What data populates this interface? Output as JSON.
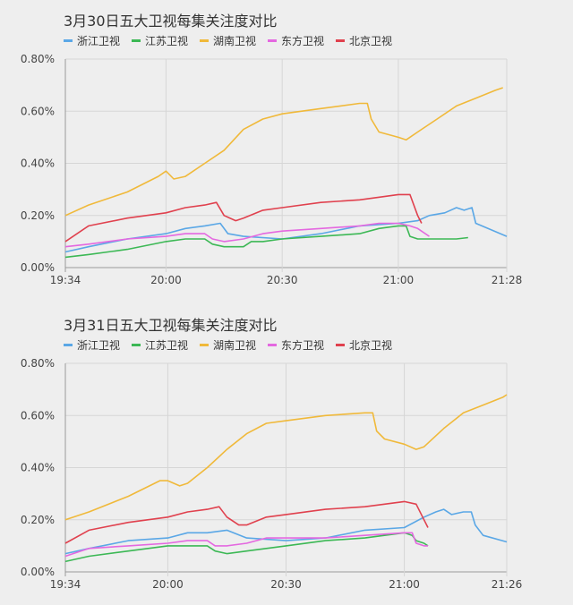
{
  "chart_data": [
    {
      "type": "line",
      "title": "3月30日五大卫视每集关注度对比",
      "xlabel": "",
      "ylabel": "",
      "x_ticks": [
        "19:34",
        "20:00",
        "20:30",
        "21:00",
        "21:28"
      ],
      "x_range": [
        "19:34",
        "21:28"
      ],
      "y_ticks": [
        "0.00%",
        "0.20%",
        "0.40%",
        "0.60%",
        "0.80%"
      ],
      "ylim": [
        0,
        0.8
      ],
      "grid": true,
      "legend_position": "top-left",
      "series": [
        {
          "name": "浙江卫视",
          "color": "#5aa7e6",
          "x": [
            "19:34",
            "19:40",
            "19:50",
            "20:00",
            "20:05",
            "20:10",
            "20:14",
            "20:16",
            "20:20",
            "20:30",
            "20:40",
            "20:50",
            "21:00",
            "21:05",
            "21:08",
            "21:12",
            "21:15",
            "21:17",
            "21:19",
            "21:20",
            "21:28"
          ],
          "values": [
            0.06,
            0.08,
            0.11,
            0.13,
            0.15,
            0.16,
            0.17,
            0.13,
            0.12,
            0.11,
            0.13,
            0.16,
            0.17,
            0.18,
            0.2,
            0.21,
            0.23,
            0.22,
            0.23,
            0.17,
            0.12
          ]
        },
        {
          "name": "江苏卫视",
          "color": "#3cb855",
          "x": [
            "19:34",
            "19:40",
            "19:50",
            "20:00",
            "20:05",
            "20:10",
            "20:12",
            "20:15",
            "20:20",
            "20:22",
            "20:25",
            "20:30",
            "20:40",
            "20:50",
            "20:55",
            "21:00",
            "21:02",
            "21:03",
            "21:05",
            "21:10",
            "21:12",
            "21:15",
            "21:18"
          ],
          "values": [
            0.04,
            0.05,
            0.07,
            0.1,
            0.11,
            0.11,
            0.09,
            0.08,
            0.08,
            0.1,
            0.1,
            0.11,
            0.12,
            0.13,
            0.15,
            0.16,
            0.16,
            0.12,
            0.11,
            0.11,
            0.11,
            0.11,
            0.115
          ]
        },
        {
          "name": "湖南卫视",
          "color": "#f0b93a",
          "x": [
            "19:34",
            "19:40",
            "19:50",
            "19:58",
            "20:00",
            "20:02",
            "20:05",
            "20:10",
            "20:15",
            "20:20",
            "20:25",
            "20:30",
            "20:40",
            "20:50",
            "20:52",
            "20:53",
            "20:55",
            "21:00",
            "21:02",
            "21:05",
            "21:10",
            "21:15",
            "21:20",
            "21:25",
            "21:27"
          ],
          "values": [
            0.2,
            0.24,
            0.29,
            0.35,
            0.37,
            0.34,
            0.35,
            0.4,
            0.45,
            0.53,
            0.57,
            0.59,
            0.61,
            0.63,
            0.63,
            0.57,
            0.52,
            0.5,
            0.49,
            0.52,
            0.57,
            0.62,
            0.65,
            0.68,
            0.69
          ]
        },
        {
          "name": "东方卫视",
          "color": "#e468e0",
          "x": [
            "19:34",
            "19:40",
            "19:50",
            "20:00",
            "20:05",
            "20:10",
            "20:12",
            "20:15",
            "20:20",
            "20:25",
            "20:30",
            "20:40",
            "20:50",
            "20:55",
            "21:00",
            "21:03",
            "21:05",
            "21:08"
          ],
          "values": [
            0.08,
            0.09,
            0.11,
            0.12,
            0.13,
            0.13,
            0.11,
            0.1,
            0.11,
            0.13,
            0.14,
            0.15,
            0.16,
            0.17,
            0.17,
            0.16,
            0.15,
            0.12
          ]
        },
        {
          "name": "北京卫视",
          "color": "#e0414e",
          "x": [
            "19:34",
            "19:40",
            "19:50",
            "20:00",
            "20:05",
            "20:10",
            "20:13",
            "20:15",
            "20:18",
            "20:20",
            "20:25",
            "20:30",
            "20:40",
            "20:50",
            "21:00",
            "21:03",
            "21:05",
            "21:06"
          ],
          "values": [
            0.1,
            0.16,
            0.19,
            0.21,
            0.23,
            0.24,
            0.25,
            0.2,
            0.18,
            0.19,
            0.22,
            0.23,
            0.25,
            0.26,
            0.28,
            0.28,
            0.2,
            0.17
          ]
        }
      ]
    },
    {
      "type": "line",
      "title": "3月31日五大卫视每集关注度对比",
      "xlabel": "",
      "ylabel": "",
      "x_ticks": [
        "19:34",
        "20:00",
        "20:30",
        "21:00",
        "21:26"
      ],
      "x_range": [
        "19:34",
        "21:26"
      ],
      "y_ticks": [
        "0.00%",
        "0.20%",
        "0.40%",
        "0.60%",
        "0.80%"
      ],
      "ylim": [
        0,
        0.8
      ],
      "grid": true,
      "legend_position": "top-left",
      "series": [
        {
          "name": "浙江卫视",
          "color": "#5aa7e6",
          "x": [
            "19:34",
            "19:40",
            "19:50",
            "20:00",
            "20:05",
            "20:10",
            "20:15",
            "20:20",
            "20:30",
            "20:40",
            "20:50",
            "21:00",
            "21:05",
            "21:08",
            "21:10",
            "21:12",
            "21:15",
            "21:17",
            "21:18",
            "21:20",
            "21:26"
          ],
          "values": [
            0.07,
            0.09,
            0.12,
            0.13,
            0.15,
            0.15,
            0.16,
            0.13,
            0.12,
            0.13,
            0.16,
            0.17,
            0.21,
            0.23,
            0.24,
            0.22,
            0.23,
            0.23,
            0.18,
            0.14,
            0.115
          ]
        },
        {
          "name": "江苏卫视",
          "color": "#3cb855",
          "x": [
            "19:34",
            "19:40",
            "19:50",
            "20:00",
            "20:05",
            "20:10",
            "20:12",
            "20:15",
            "20:20",
            "20:25",
            "20:30",
            "20:40",
            "20:50",
            "20:55",
            "21:00",
            "21:02",
            "21:03",
            "21:05",
            "21:06"
          ],
          "values": [
            0.04,
            0.06,
            0.08,
            0.1,
            0.1,
            0.1,
            0.08,
            0.07,
            0.08,
            0.09,
            0.1,
            0.12,
            0.13,
            0.14,
            0.15,
            0.14,
            0.12,
            0.11,
            0.1
          ]
        },
        {
          "name": "湖南卫视",
          "color": "#f0b93a",
          "x": [
            "19:34",
            "19:40",
            "19:50",
            "19:58",
            "20:00",
            "20:03",
            "20:05",
            "20:10",
            "20:15",
            "20:20",
            "20:25",
            "20:30",
            "20:40",
            "20:50",
            "20:52",
            "20:53",
            "20:55",
            "21:00",
            "21:03",
            "21:05",
            "21:10",
            "21:15",
            "21:20",
            "21:25",
            "21:26"
          ],
          "values": [
            0.2,
            0.23,
            0.29,
            0.35,
            0.35,
            0.33,
            0.34,
            0.4,
            0.47,
            0.53,
            0.57,
            0.58,
            0.6,
            0.61,
            0.61,
            0.54,
            0.51,
            0.49,
            0.47,
            0.48,
            0.55,
            0.61,
            0.64,
            0.67,
            0.68
          ]
        },
        {
          "name": "东方卫视",
          "color": "#e468e0",
          "x": [
            "19:34",
            "19:40",
            "19:50",
            "20:00",
            "20:05",
            "20:10",
            "20:12",
            "20:15",
            "20:20",
            "20:25",
            "20:30",
            "20:40",
            "20:50",
            "21:00",
            "21:02",
            "21:03",
            "21:05",
            "21:06"
          ],
          "values": [
            0.06,
            0.09,
            0.1,
            0.11,
            0.12,
            0.12,
            0.1,
            0.1,
            0.11,
            0.13,
            0.13,
            0.13,
            0.14,
            0.15,
            0.15,
            0.11,
            0.1,
            0.1
          ]
        },
        {
          "name": "北京卫视",
          "color": "#e0414e",
          "x": [
            "19:34",
            "19:40",
            "19:50",
            "20:00",
            "20:05",
            "20:10",
            "20:13",
            "20:15",
            "20:18",
            "20:20",
            "20:25",
            "20:30",
            "20:40",
            "20:50",
            "21:00",
            "21:03",
            "21:05",
            "21:06"
          ],
          "values": [
            0.11,
            0.16,
            0.19,
            0.21,
            0.23,
            0.24,
            0.25,
            0.21,
            0.18,
            0.18,
            0.21,
            0.22,
            0.24,
            0.25,
            0.27,
            0.26,
            0.2,
            0.17
          ]
        }
      ]
    }
  ]
}
